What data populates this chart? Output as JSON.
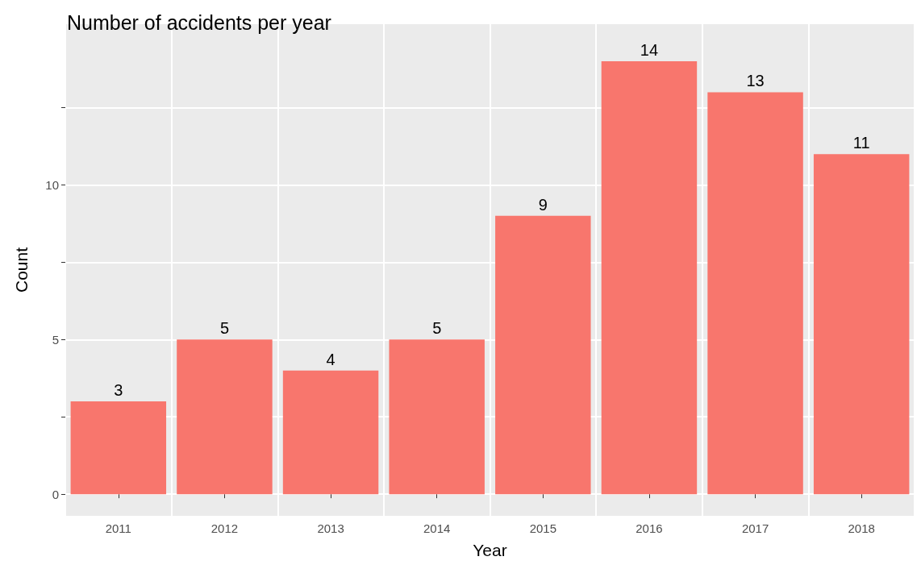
{
  "chart_data": {
    "type": "bar",
    "title": "Number of accidents per year",
    "xlabel": "Year",
    "ylabel": "Count",
    "categories": [
      "2011",
      "2012",
      "2013",
      "2014",
      "2015",
      "2016",
      "2017",
      "2018"
    ],
    "values": [
      3,
      5,
      4,
      5,
      9,
      14,
      13,
      11
    ],
    "color": "#f8766d",
    "ylim": [
      -0.7,
      15.2
    ],
    "yticks": [
      0,
      {
        "value": 2.5,
        "label": null
      },
      5,
      {
        "value": 7.5,
        "label": null
      },
      10,
      {
        "value": 12.5,
        "label": null
      }
    ],
    "grid": true,
    "data_labels": true
  }
}
